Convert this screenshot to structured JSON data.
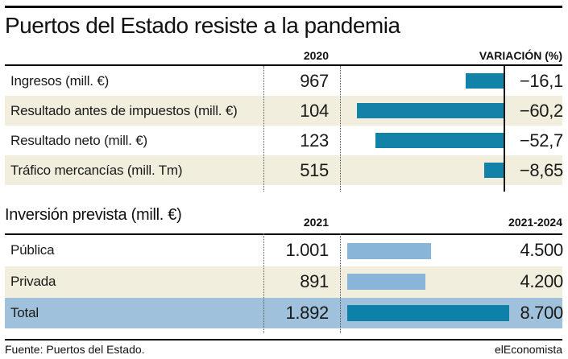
{
  "title": "Puertos del Estado resiste a la pandemia",
  "colors": {
    "teal_bar": "#1382a9",
    "light_blue_bar": "#89b6d8",
    "total_row_bg": "#9fc1db",
    "alt_row_bg": "#f1eedd",
    "text": "#1a1a1a"
  },
  "section1": {
    "col_2020": "2020",
    "col_variacion": "VARIACIÓN (%)",
    "rows": [
      {
        "label": "Ingresos (mill. €)",
        "value": "967",
        "variation": "−16,1",
        "variation_abs": 16.1
      },
      {
        "label": "Resultado antes de impuestos (mill. €)",
        "value": "104",
        "variation": "−60,2",
        "variation_abs": 60.2
      },
      {
        "label": "Resultado neto (mill. €)",
        "value": "123",
        "variation": "−52,7",
        "variation_abs": 52.7
      },
      {
        "label": "Tráfico mercancías (mill. Tm)",
        "value": "515",
        "variation": "−8,65",
        "variation_abs": 8.65
      }
    ]
  },
  "section2": {
    "title": "Inversión prevista (mill. €)",
    "col_2021": "2021",
    "col_2021_2024": "2021-2024",
    "rows": [
      {
        "label": "Pública",
        "value_2021": "1.001",
        "value_2021_2024": "4.500",
        "bar_value": 4500,
        "is_total": false
      },
      {
        "label": "Privada",
        "value_2021": "891",
        "value_2021_2024": "4.200",
        "bar_value": 4200,
        "is_total": false
      },
      {
        "label": "Total",
        "value_2021": "1.892",
        "value_2021_2024": "8.700",
        "bar_value": 8700,
        "is_total": true
      }
    ]
  },
  "footer": {
    "source": "Fuente: Puertos del Estado.",
    "brand": "elEconomista"
  },
  "chart_data": [
    {
      "type": "bar",
      "orientation": "horizontal",
      "title": "Puertos del Estado resiste a la pandemia",
      "categories": [
        "Ingresos (mill. €)",
        "Resultado antes de impuestos (mill. €)",
        "Resultado neto (mill. €)",
        "Tráfico mercancías (mill. Tm)"
      ],
      "series": [
        {
          "name": "2020",
          "values": [
            967,
            104,
            123,
            515
          ]
        },
        {
          "name": "VARIACIÓN (%)",
          "values": [
            -16.1,
            -60.2,
            -52.7,
            -8.65
          ]
        }
      ],
      "bars_depict": "VARIACIÓN (%)",
      "xlim": [
        -60.2,
        0
      ],
      "grid": false,
      "legend_position": "none"
    },
    {
      "type": "bar",
      "orientation": "horizontal",
      "title": "Inversión prevista (mill. €)",
      "categories": [
        "Pública",
        "Privada",
        "Total"
      ],
      "series": [
        {
          "name": "2021",
          "values": [
            1001,
            891,
            1892
          ]
        },
        {
          "name": "2021-2024",
          "values": [
            4500,
            4200,
            8700
          ]
        }
      ],
      "bars_depict": "2021-2024",
      "xlim": [
        0,
        8700
      ],
      "grid": false,
      "legend_position": "none"
    }
  ]
}
